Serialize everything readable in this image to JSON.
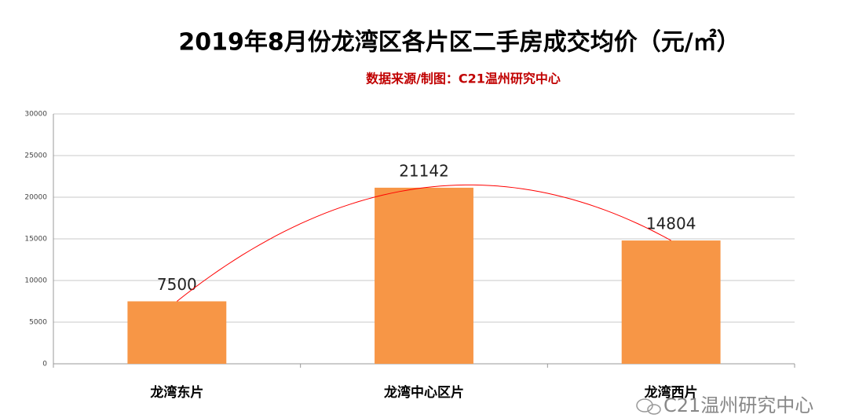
{
  "chart_data": {
    "type": "bar",
    "title": "2019年8月份龙湾区各片区二手房成交均价（元/㎡）",
    "subtitle": "数据来源/制图：C21温州研究中心",
    "categories": [
      "龙湾东片",
      "龙湾中心区片",
      "龙湾西片"
    ],
    "values": [
      7500,
      21142,
      14804
    ],
    "color": "#f79646",
    "trendline_color": "#ff0000",
    "ylim": [
      0,
      30000
    ],
    "yticks": [
      0,
      5000,
      10000,
      15000,
      20000,
      25000,
      30000
    ],
    "grid": true,
    "watermark": "C21温州研究中心"
  }
}
